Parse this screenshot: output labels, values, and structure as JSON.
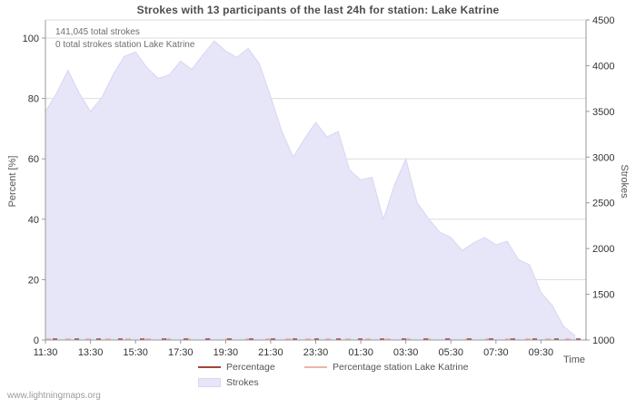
{
  "chart_data": {
    "type": "area",
    "title": "Strokes with 13 participants of the last 24h for station: Lake Katrine",
    "annotations": [
      "141,045 total strokes",
      "0 total strokes station Lake Katrine"
    ],
    "x": {
      "label": "Time",
      "ticks": [
        "11:30",
        "13:30",
        "15:30",
        "17:30",
        "19:30",
        "21:30",
        "23:30",
        "01:30",
        "03:30",
        "05:30",
        "07:30",
        "09:30"
      ],
      "span_hours": 24,
      "tick_interval_hours": 2
    },
    "y_left": {
      "label": "Percent  [%]",
      "ticks": [
        0,
        20,
        40,
        60,
        80,
        100
      ],
      "min": 0,
      "max": 106
    },
    "y_right": {
      "label": "Strokes",
      "ticks": [
        1000,
        1500,
        2000,
        2500,
        3000,
        3500,
        4000,
        4500
      ],
      "min": 1000,
      "max": 4500
    },
    "series": [
      {
        "name": "Strokes",
        "type": "area",
        "axis": "right",
        "interval_hours": 0.5,
        "times": [
          "11:30",
          "12:00",
          "12:30",
          "13:00",
          "13:30",
          "14:00",
          "14:30",
          "15:00",
          "15:30",
          "16:00",
          "16:30",
          "17:00",
          "17:30",
          "18:00",
          "18:30",
          "19:00",
          "19:30",
          "20:00",
          "20:30",
          "21:00",
          "21:30",
          "22:00",
          "22:30",
          "23:00",
          "23:30",
          "00:00",
          "00:30",
          "01:00",
          "01:30",
          "02:00",
          "02:30",
          "03:00",
          "03:30",
          "04:00",
          "04:30",
          "05:00",
          "05:30",
          "06:00",
          "06:30",
          "07:00",
          "07:30",
          "08:00",
          "08:30",
          "09:00",
          "09:30",
          "10:00",
          "10:30",
          "11:00"
        ],
        "values": [
          3500,
          3700,
          3950,
          3700,
          3500,
          3650,
          3900,
          4100,
          4150,
          3980,
          3860,
          3900,
          4050,
          3960,
          4120,
          4270,
          4160,
          4090,
          4190,
          4020,
          3660,
          3280,
          3000,
          3200,
          3380,
          3220,
          3280,
          2860,
          2750,
          2780,
          2320,
          2700,
          2980,
          2500,
          2330,
          2180,
          2120,
          1980,
          2060,
          2120,
          2040,
          2080,
          1880,
          1820,
          1520,
          1380,
          1150,
          1050
        ]
      },
      {
        "name": "Percentage",
        "type": "line",
        "axis": "left",
        "constant_value": 0
      },
      {
        "name": "Percentage station Lake Katrine",
        "type": "line",
        "axis": "left",
        "constant_value": 0
      }
    ],
    "colors": {
      "area_fill": "#e7e5f8",
      "area_stroke": "#d9d5f3",
      "pct": "#a3433c",
      "pct_station": "#eab4ab",
      "grid": "#dcdcdc",
      "axis": "#9a9a9a",
      "tick_text": "#333333"
    },
    "legend_position": "bottom",
    "grid": true
  },
  "footer": {
    "watermark": "www.lightningmaps.org"
  }
}
